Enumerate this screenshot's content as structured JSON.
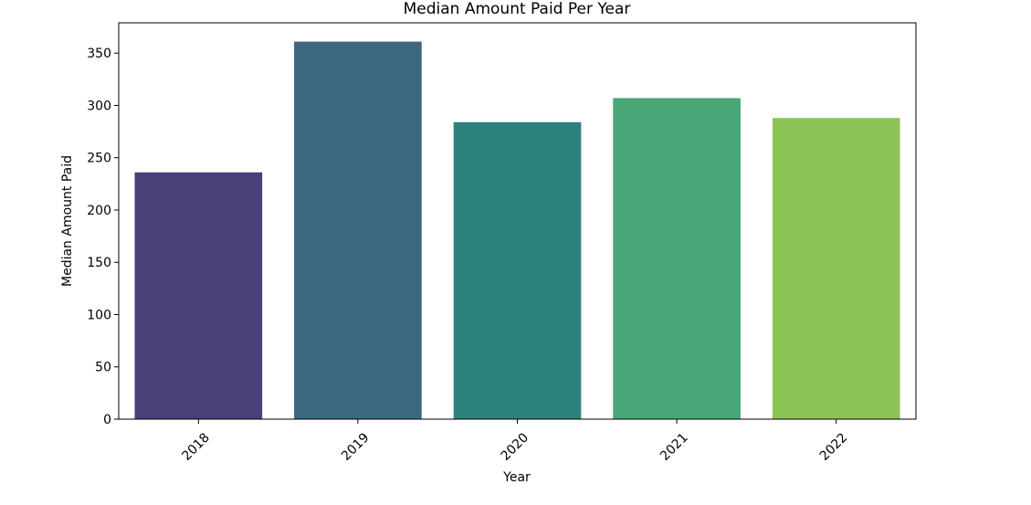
{
  "chart_data": {
    "type": "bar",
    "title": "Median Amount Paid Per Year",
    "xlabel": "Year",
    "ylabel": "Median Amount Paid",
    "categories": [
      "2018",
      "2019",
      "2020",
      "2021",
      "2022"
    ],
    "values": [
      236,
      361,
      284,
      307,
      288
    ],
    "colors": [
      "#4a3f77",
      "#3e6780",
      "#2e827c",
      "#49a676",
      "#8dc456"
    ],
    "ylim": [
      0,
      379
    ],
    "yticks": [
      0,
      50,
      100,
      150,
      200,
      250,
      300,
      350
    ],
    "grid": false,
    "legend": "none",
    "xtick_rotation": 45
  }
}
